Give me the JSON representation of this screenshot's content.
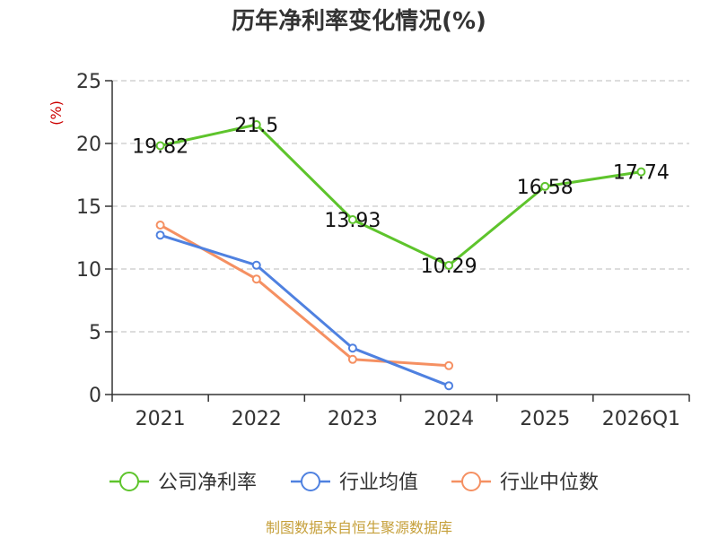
{
  "colors": {
    "company": "#5ec42c",
    "industry_avg": "#4f81e0",
    "industry_median": "#f59062",
    "unit": "#cc0000",
    "source": "#c6a03b",
    "axis": "#333333",
    "grid": "#bbbbbb"
  },
  "chart_data": {
    "type": "line",
    "title": "历年净利率变化情况(%)",
    "ylabel": "(%)",
    "xlabel": "",
    "categories": [
      "2021",
      "2022",
      "2023",
      "2024",
      "2025",
      "2026Q1"
    ],
    "ylim": [
      0,
      25
    ],
    "yticks": [
      0,
      5,
      10,
      15,
      20,
      25
    ],
    "grid": true,
    "legend_position": "bottom",
    "series": [
      {
        "name": "公司净利率",
        "values": [
          19.82,
          21.5,
          13.93,
          10.29,
          16.58,
          17.74
        ],
        "labels": [
          "19.82",
          "21.5",
          "13.93",
          "10.29",
          "16.58",
          "17.74"
        ]
      },
      {
        "name": "行业均值",
        "values": [
          12.7,
          10.3,
          3.7,
          0.7,
          null,
          null
        ]
      },
      {
        "name": "行业中位数",
        "values": [
          13.5,
          9.2,
          2.8,
          2.3,
          null,
          null
        ]
      }
    ]
  },
  "source": "制图数据来自恒生聚源数据库"
}
